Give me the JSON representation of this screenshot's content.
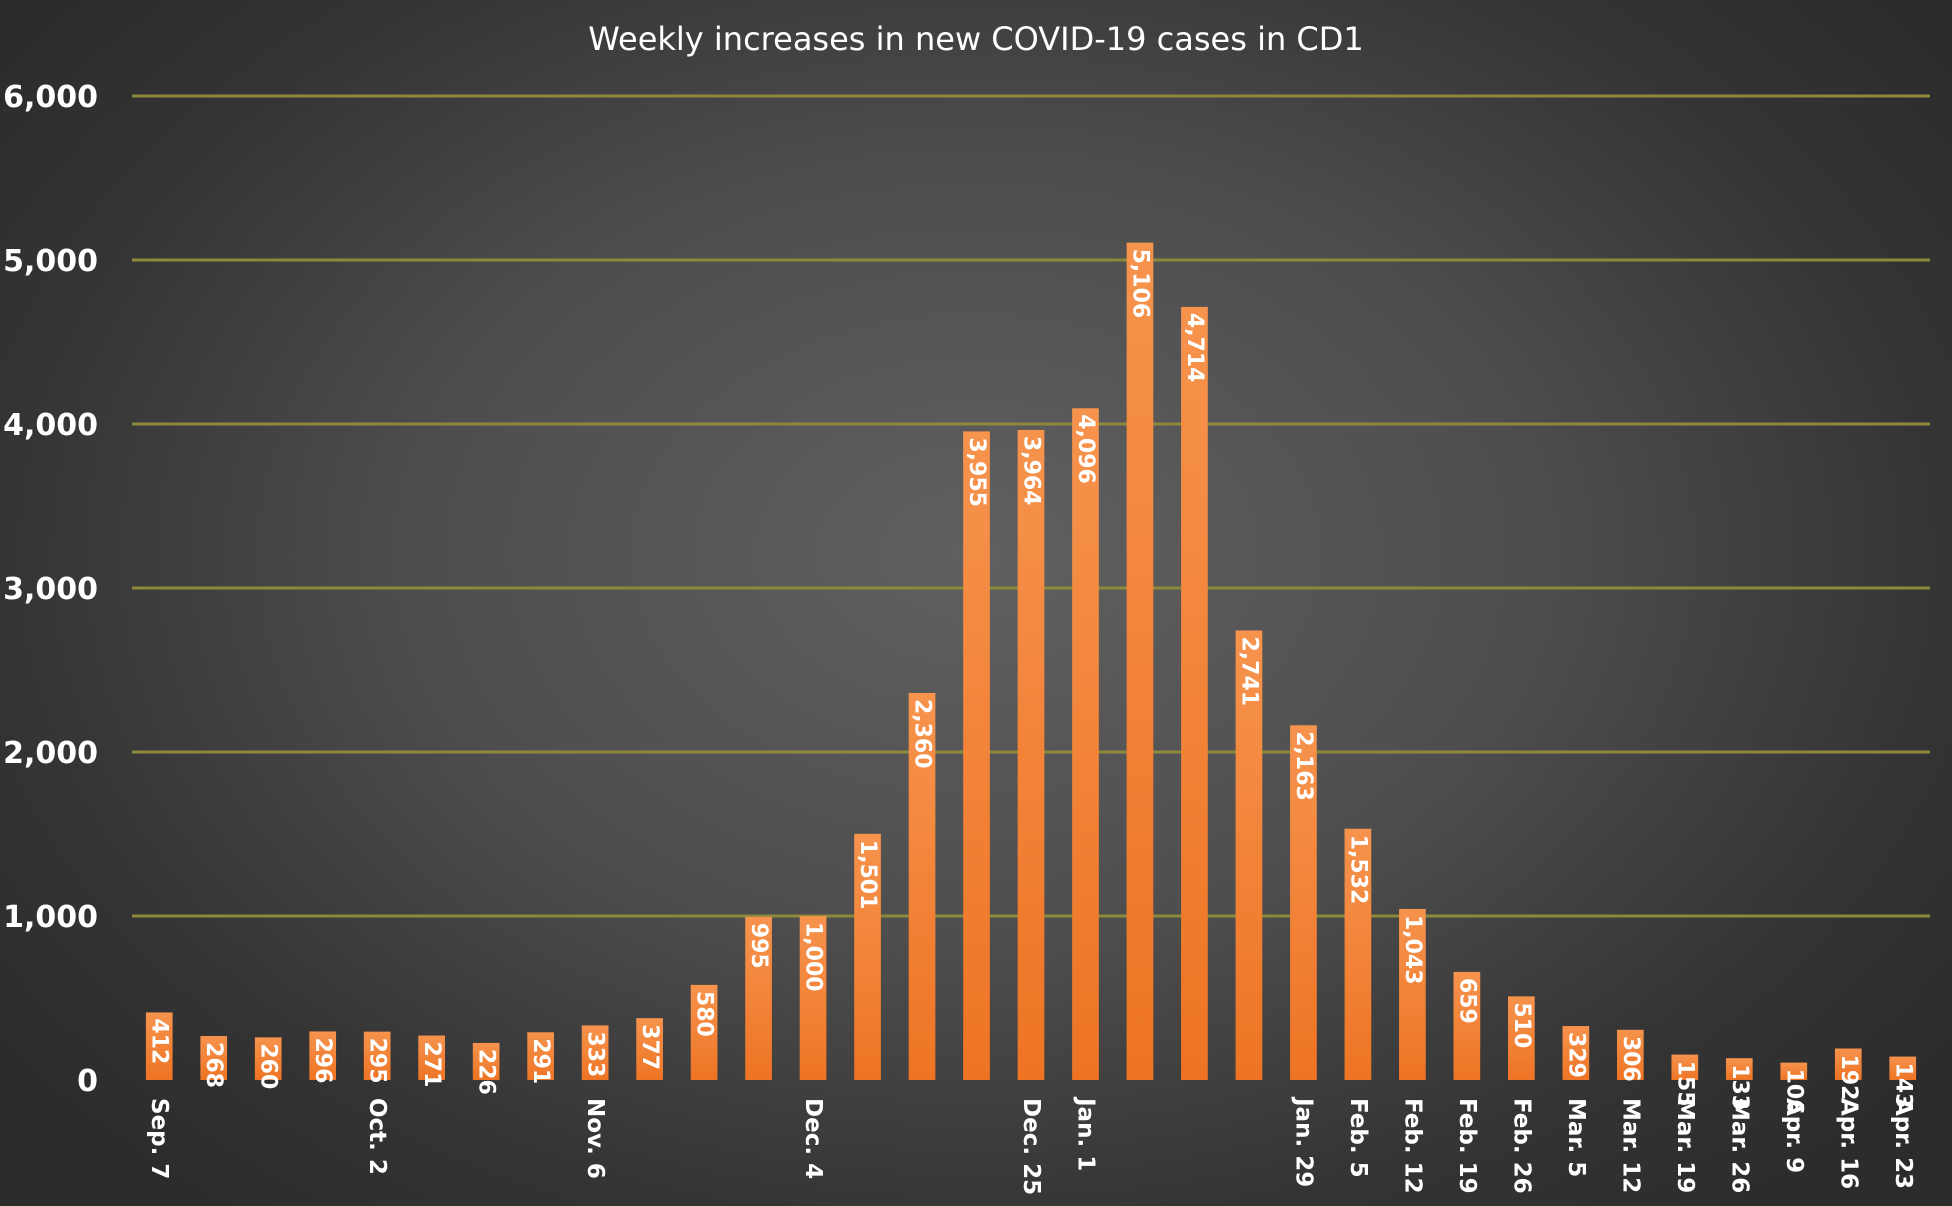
{
  "chart_data": {
    "type": "bar",
    "title": "Weekly increases in new COVID-19 cases in CD1",
    "xlabel": "",
    "ylabel": "",
    "ylim": [
      0,
      6000
    ],
    "yticks": [
      "0",
      "1,000",
      "2,000",
      "3,000",
      "4,000",
      "5,000",
      "6,000"
    ],
    "grid": true,
    "legend": "none",
    "colors": {
      "bar": "#f07a2c",
      "bar_light": "#f6914a",
      "gridline": "#8c8a3a",
      "text": "#ffffff"
    },
    "categories": [
      "Sep. 7",
      "",
      "",
      "",
      "Oct. 2",
      "",
      "",
      "",
      "Nov. 6",
      "",
      "",
      "",
      "Dec. 4",
      "",
      "",
      "",
      "Dec. 25",
      "Jan. 1",
      "",
      "",
      "",
      "Jan. 29",
      "Feb. 5",
      "Feb. 12",
      "Feb. 19",
      "Feb. 26",
      "Mar. 5",
      "Mar. 12",
      "Mar. 19",
      "Mar. 26",
      "Apr. 9",
      "Apr. 16",
      "Apr. 23"
    ],
    "values": [
      412,
      268,
      260,
      296,
      295,
      271,
      226,
      291,
      333,
      377,
      580,
      995,
      1000,
      1501,
      2360,
      3955,
      3964,
      4096,
      5106,
      4714,
      2741,
      2163,
      1532,
      1043,
      659,
      510,
      329,
      306,
      155,
      133,
      106,
      192,
      143
    ],
    "data_labels": [
      "412",
      "268",
      "260",
      "296",
      "295",
      "271",
      "226",
      "291",
      "333",
      "377",
      "580",
      "995",
      "1,000",
      "1,501",
      "2,360",
      "3,955",
      "3,964",
      "4,096",
      "5,106",
      "4,714",
      "2,741",
      "2,163",
      "1,532",
      "1,043",
      "659",
      "510",
      "329",
      "306",
      "155",
      "133",
      "106",
      "192",
      "143"
    ]
  }
}
